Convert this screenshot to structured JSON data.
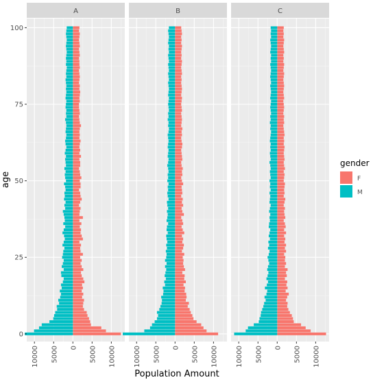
{
  "chart_data": {
    "type": "bar",
    "orientation": "horizontal",
    "xlabel": "Population Amount",
    "ylabel": "age",
    "facets": [
      "A",
      "B",
      "C"
    ],
    "y_ticks": [
      0,
      25,
      50,
      75,
      100
    ],
    "x_ticks": [
      {
        "value": -10000,
        "label": "10000"
      },
      {
        "value": -5000,
        "label": "5000"
      },
      {
        "value": 0,
        "label": "0"
      },
      {
        "value": 5000,
        "label": "5000"
      },
      {
        "value": 10000,
        "label": "10000"
      }
    ],
    "xlim": [
      -12000,
      13500
    ],
    "ylim": [
      -2.5,
      103
    ],
    "legend": {
      "title": "gender",
      "entries": [
        {
          "name": "F",
          "color": "#F8766D"
        },
        {
          "name": "M",
          "color": "#00BFC4"
        }
      ],
      "position": "right"
    },
    "colors": {
      "F": "#F8766D",
      "M": "#00BFC4",
      "panel": "#EBEBEB",
      "strip": "#D9D9D9"
    },
    "ages": [
      0,
      1,
      2,
      3,
      4,
      5,
      6,
      7,
      8,
      9,
      10,
      11,
      12,
      13,
      14,
      15,
      16,
      17,
      18,
      19,
      20,
      21,
      22,
      23,
      24,
      25,
      26,
      27,
      28,
      29,
      30,
      31,
      32,
      33,
      34,
      35,
      36,
      37,
      38,
      39,
      40,
      41,
      42,
      43,
      44,
      45,
      46,
      47,
      48,
      49,
      50,
      51,
      52,
      53,
      54,
      55,
      56,
      57,
      58,
      59,
      60,
      61,
      62,
      63,
      64,
      65,
      66,
      67,
      68,
      69,
      70,
      71,
      72,
      73,
      74,
      75,
      76,
      77,
      78,
      79,
      80,
      81,
      82,
      83,
      84,
      85,
      86,
      87,
      88,
      89,
      90,
      91,
      92,
      93,
      94,
      95,
      96,
      97,
      98,
      99,
      100
    ],
    "series": [
      {
        "facet": "A",
        "F": [
          12500,
          8600,
          7400,
          4700,
          4500,
          4200,
          3800,
          3600,
          2900,
          2600,
          2700,
          2900,
          2400,
          2700,
          2300,
          2600,
          2400,
          3000,
          2700,
          2300,
          2100,
          2700,
          2300,
          2000,
          2300,
          1900,
          2600,
          2000,
          1900,
          2100,
          1700,
          2600,
          2300,
          2000,
          2100,
          1800,
          2200,
          1700,
          2600,
          1700,
          1800,
          2000,
          1600,
          1900,
          2300,
          2000,
          1900,
          1600,
          2000,
          2000,
          1800,
          2200,
          1900,
          1800,
          1600,
          1900,
          1900,
          1700,
          2100,
          1700,
          1900,
          1700,
          1800,
          2000,
          1700,
          1800,
          1700,
          1800,
          2100,
          1800,
          1700,
          1600,
          1800,
          1700,
          1600,
          1600,
          1800,
          1700,
          1800,
          1900,
          1700,
          1800,
          1600,
          1700,
          1800,
          1700,
          1600,
          1800,
          1700,
          1700,
          1600,
          1800,
          1700,
          1600,
          1800,
          1700,
          1600,
          1700,
          1800,
          1600,
          1700
        ],
        "M": [
          -12500,
          -10100,
          -8800,
          -8100,
          -6100,
          -5100,
          -4900,
          -4600,
          -4100,
          -4200,
          -3600,
          -3800,
          -3300,
          -3100,
          -3400,
          -2900,
          -3100,
          -2600,
          -2400,
          -3000,
          -3100,
          -2400,
          -2900,
          -2600,
          -2400,
          -2800,
          -2600,
          -2500,
          -2200,
          -2700,
          -2400,
          -2100,
          -2300,
          -2700,
          -2400,
          -2000,
          -2500,
          -2100,
          -2200,
          -2400,
          -2600,
          -2000,
          -2200,
          -1900,
          -2300,
          -2100,
          -2200,
          -1900,
          -2000,
          -2300,
          -1800,
          -2000,
          -2100,
          -1900,
          -2200,
          -1800,
          -1900,
          -2000,
          -1800,
          -2100,
          -1900,
          -1700,
          -1900,
          -2000,
          -1800,
          -1700,
          -1900,
          -1800,
          -1700,
          -1800,
          -2000,
          -1700,
          -1800,
          -1700,
          -1900,
          -1800,
          -1700,
          -1900,
          -1800,
          -1700,
          -1800,
          -1700,
          -1800,
          -1900,
          -1700,
          -1800,
          -1700,
          -1600,
          -1800,
          -1700,
          -1800,
          -1700,
          -1600,
          -1700,
          -1800,
          -1700,
          -1600,
          -1700,
          -1800,
          -1700,
          -1600
        ]
      },
      {
        "facet": "B",
        "F": [
          11200,
          8200,
          7400,
          6800,
          5600,
          4800,
          4500,
          4100,
          3800,
          3300,
          3600,
          2800,
          3000,
          2900,
          2500,
          2600,
          2200,
          2800,
          2400,
          2500,
          1900,
          2600,
          2300,
          2100,
          2200,
          2000,
          2400,
          1800,
          2100,
          2300,
          1900,
          2100,
          1800,
          2400,
          2000,
          1700,
          2100,
          1900,
          1600,
          2300,
          1900,
          1700,
          2100,
          1800,
          2000,
          1600,
          1900,
          1800,
          1700,
          2100,
          1800,
          1600,
          1900,
          1800,
          2000,
          1700,
          1600,
          1900,
          1800,
          1700,
          1600,
          1800,
          1900,
          1700,
          1600,
          1800,
          1700,
          1900,
          1600,
          1700,
          1800,
          1700,
          1600,
          1800,
          1700,
          1600,
          1700,
          1800,
          1600,
          1700,
          1800,
          1700,
          1600,
          1700,
          1600,
          1800,
          1700,
          1600,
          1700,
          1800,
          1600,
          1700,
          1600,
          1700,
          1800,
          1600,
          1700,
          1600,
          1800,
          1700,
          1600
        ],
        "M": [
          -13600,
          -8000,
          -6500,
          -6000,
          -5300,
          -4700,
          -4400,
          -4700,
          -4100,
          -3800,
          -3500,
          -3400,
          -3600,
          -3100,
          -3000,
          -3200,
          -2600,
          -2800,
          -2400,
          -2700,
          -2500,
          -2300,
          -2600,
          -2200,
          -2600,
          -2300,
          -2200,
          -2400,
          -2100,
          -2300,
          -2000,
          -2200,
          -2300,
          -1900,
          -2200,
          -2100,
          -1800,
          -2200,
          -2000,
          -1900,
          -2100,
          -1800,
          -2000,
          -2100,
          -1700,
          -1900,
          -2000,
          -1800,
          -1900,
          -1700,
          -2000,
          -1800,
          -1900,
          -1700,
          -1800,
          -2000,
          -1800,
          -1700,
          -1900,
          -1800,
          -1700,
          -1900,
          -1800,
          -1700,
          -1800,
          -1900,
          -1700,
          -1600,
          -1800,
          -1700,
          -1900,
          -1700,
          -1800,
          -1600,
          -1700,
          -1800,
          -1700,
          -1600,
          -1800,
          -1700,
          -1600,
          -1700,
          -1800,
          -1600,
          -1700,
          -1800,
          -1600,
          -1700,
          -1800,
          -1600,
          -1700,
          -1800,
          -1600,
          -1700,
          -1600,
          -1800,
          -1700,
          -1600,
          -1700,
          -1800,
          -1600
        ]
      },
      {
        "facet": "C",
        "F": [
          12700,
          8700,
          7400,
          6200,
          4300,
          4100,
          3800,
          3300,
          2900,
          2600,
          2700,
          2300,
          2600,
          3000,
          2200,
          2700,
          2400,
          2600,
          2000,
          2500,
          2300,
          2700,
          2000,
          2300,
          2000,
          2100,
          1800,
          2300,
          2000,
          2300,
          1900,
          2100,
          1800,
          2300,
          1800,
          2200,
          2000,
          1700,
          2100,
          1900,
          1800,
          2000,
          1700,
          1900,
          2100,
          1700,
          1900,
          1800,
          1900,
          2000,
          1700,
          1800,
          1900,
          1700,
          2000,
          1800,
          1700,
          1900,
          1800,
          1700,
          1800,
          1900,
          1700,
          1800,
          1700,
          1900,
          1800,
          1700,
          1600,
          1800,
          1700,
          1800,
          1600,
          1700,
          1800,
          1700,
          1600,
          1800,
          1700,
          1600,
          1700,
          1800,
          1700,
          1600,
          1700,
          1800,
          1600,
          1700,
          1800,
          1600,
          1700,
          1600,
          1800,
          1700,
          1600,
          1700,
          1800,
          1600,
          1700,
          1600,
          1700
        ],
        "M": [
          -11200,
          -8200,
          -7600,
          -6100,
          -4800,
          -4600,
          -4300,
          -4200,
          -3900,
          -3600,
          -3400,
          -3000,
          -3300,
          -2800,
          -2600,
          -3200,
          -2700,
          -2400,
          -2800,
          -2500,
          -2300,
          -2600,
          -2400,
          -2100,
          -2300,
          -2500,
          -2200,
          -2000,
          -2400,
          -2100,
          -2300,
          -1900,
          -2200,
          -2000,
          -1800,
          -2200,
          -2100,
          -1900,
          -2000,
          -1800,
          -2100,
          -1900,
          -1700,
          -2000,
          -1900,
          -1800,
          -2000,
          -1700,
          -1900,
          -1800,
          -2000,
          -1700,
          -1800,
          -1900,
          -1700,
          -1800,
          -2000,
          -1700,
          -1800,
          -1900,
          -1700,
          -1800,
          -1700,
          -1900,
          -1800,
          -1700,
          -1600,
          -1800,
          -1700,
          -1900,
          -1700,
          -1800,
          -1600,
          -1700,
          -1800,
          -1700,
          -1600,
          -1800,
          -1700,
          -1600,
          -1700,
          -1800,
          -1600,
          -1700,
          -1800,
          -1700,
          -1600,
          -1700,
          -1800,
          -1600,
          -1700,
          -1600,
          -1800,
          -1700,
          -1600,
          -1700,
          -1800,
          -1600,
          -1700,
          -1600,
          -1700
        ]
      }
    ]
  }
}
